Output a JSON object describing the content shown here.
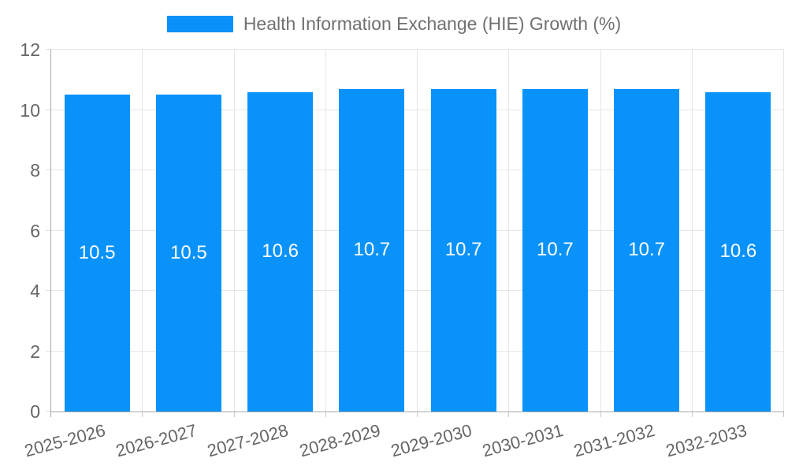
{
  "chart_data": {
    "type": "bar",
    "title": "",
    "series_name": "Health Information Exchange (HIE) Growth (%)",
    "categories": [
      "2025-2026",
      "2026-2027",
      "2027-2028",
      "2028-2029",
      "2029-2030",
      "2030-2031",
      "2031-2032",
      "2032-2033"
    ],
    "values": [
      10.5,
      10.5,
      10.6,
      10.7,
      10.7,
      10.7,
      10.7,
      10.6
    ],
    "value_labels": [
      "10.5",
      "10.5",
      "10.6",
      "10.7",
      "10.7",
      "10.7",
      "10.7",
      "10.6"
    ],
    "xlabel": "",
    "ylabel": "",
    "ylim": [
      0,
      12
    ],
    "yticks": [
      0,
      2,
      4,
      6,
      8,
      10,
      12
    ],
    "grid": true,
    "legend_position": "top",
    "bar_value_labels_shown": true,
    "x_label_rotation_deg": -15
  },
  "colors": {
    "bar": "#0892fa",
    "bar_value_text": "#ffffff",
    "grid_line": "#e6e6e6",
    "axis_line": "#a8a8a8",
    "x_tick_mark": "#c9c9c9",
    "y_tick_mark": "#e0e0e0",
    "tick_text": "#666666",
    "legend_text": "#707070",
    "background": "#ffffff"
  }
}
